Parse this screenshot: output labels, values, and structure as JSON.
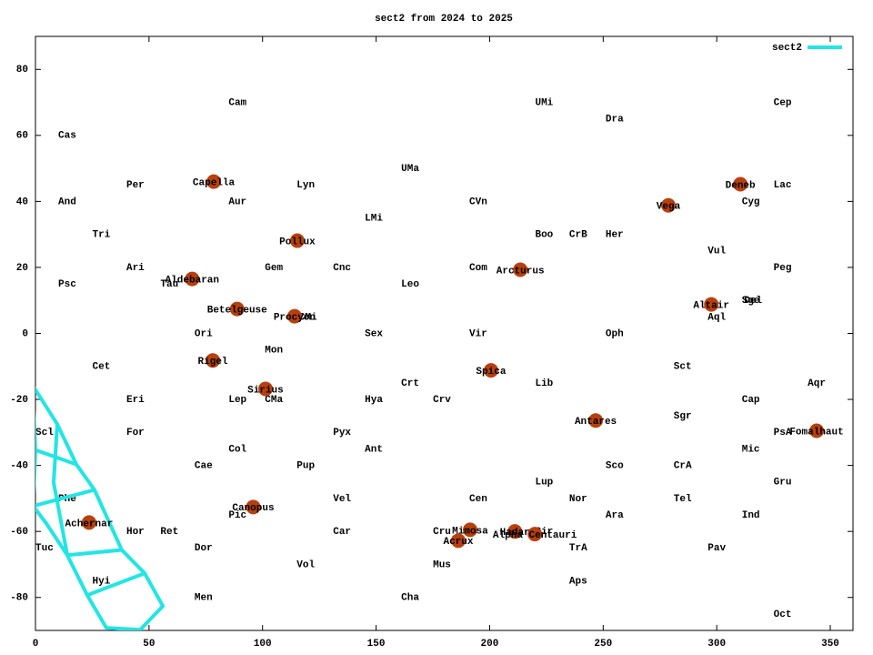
{
  "chart_data": {
    "type": "line",
    "title": "sect2 from 2024 to 2025",
    "xlim": [
      0,
      360
    ],
    "ylim": [
      -90,
      90
    ],
    "xticks": [
      0,
      50,
      100,
      150,
      200,
      250,
      300,
      350
    ],
    "yticks": [
      -80,
      -60,
      -40,
      -20,
      0,
      20,
      40,
      60,
      80
    ],
    "legend": "top-right",
    "series": [
      {
        "name": "sect2",
        "color": "#22e5e5",
        "x": [
          -1,
          9.6,
          18,
          26,
          38,
          48.1,
          56.1,
          46.1,
          31.2,
          22.8,
          14,
          4.8,
          -1,
          0,
          -1,
          -1,
          null,
          0,
          18,
          null,
          -1,
          26,
          null,
          14,
          38,
          null,
          22.8,
          48.1,
          null,
          9.6,
          8,
          14
        ],
        "values": [
          -16,
          -27.5,
          -39.7,
          -47.4,
          -65.6,
          -72.7,
          -82.6,
          -89.8,
          -89.2,
          -79.3,
          -67.2,
          -57.6,
          -52.3,
          -35.3,
          -19.8,
          -16,
          null,
          -35.3,
          -39.7,
          null,
          -52.3,
          -47.4,
          null,
          -67.2,
          -65.6,
          null,
          -79.3,
          -72.7,
          null,
          -27.5,
          -45.2,
          -67.2
        ]
      }
    ],
    "stars": {
      "color": "#b8400e",
      "names": [
        "Capella",
        "Pollux",
        "Aldebaran",
        "Betelgeuse",
        "Procyon",
        "Rigel",
        "Sirius",
        "Canopus",
        "Achernar",
        "Arcturus",
        "Spica",
        "Antares",
        "Vega",
        "Deneb",
        "Altair",
        "Fomalhaut",
        "Mimosa",
        "Acrux",
        "Hadar",
        "Alpha Centauri"
      ],
      "x": [
        78.5,
        115.3,
        69,
        88.8,
        114.1,
        78.1,
        101.3,
        95.9,
        23.6,
        213.5,
        200.6,
        246.7,
        278.7,
        310.4,
        297.6,
        344,
        191.4,
        186.2,
        211.1,
        219.9
      ],
      "values": [
        46,
        28.1,
        16.5,
        7.4,
        5.2,
        -8.2,
        -16.8,
        -52.6,
        -57.3,
        19.3,
        -11.2,
        -26.4,
        38.8,
        45.2,
        8.8,
        -29.5,
        -59.5,
        -62.8,
        -60,
        -60.8
      ]
    },
    "constellations": {
      "names": [
        "Cas",
        "Cam",
        "UMi",
        "Dra",
        "Cep",
        "Per",
        "Lyn",
        "UMa",
        "Lac",
        "And",
        "Aur",
        "CVn",
        "Cyg",
        "LMi",
        "Tri",
        "Boo",
        "CrB",
        "Her",
        "Vul",
        "Ari",
        "Gem",
        "Cnc",
        "Com",
        "Peg",
        "Psc",
        "Tau",
        "Leo",
        "Sge",
        "Del",
        "Aql",
        "CMi",
        "Ori",
        "Sex",
        "Vir",
        "Oph",
        "Mon",
        "Cet",
        "Sct",
        "Crt",
        "Lib",
        "Aqr",
        "Eri",
        "Lep",
        "CMa",
        "Hya",
        "Crv",
        "Cap",
        "Sgr",
        "Scl",
        "For",
        "Pyx",
        "PsA",
        "Col",
        "Ant",
        "Mic",
        "Cae",
        "Pup",
        "Sco",
        "CrA",
        "Lup",
        "Gru",
        "Phe",
        "Vel",
        "Cen",
        "Nor",
        "Tel",
        "Pic",
        "Ara",
        "Ind",
        "Hor",
        "Ret",
        "Car",
        "Cru",
        "Cir",
        "Tuc",
        "Dor",
        "TrA",
        "Pav",
        "Mus",
        "Vol",
        "Aps",
        "Hyi",
        "Men",
        "Cha",
        "Oct"
      ],
      "x": [
        14,
        89,
        224,
        255,
        329,
        44,
        119,
        165,
        329,
        14,
        89,
        195,
        315,
        149,
        29,
        224,
        239,
        255,
        300,
        44,
        105,
        135,
        195,
        329,
        14,
        59,
        165,
        315,
        316,
        300,
        120,
        74,
        149,
        195,
        255,
        105,
        29,
        285,
        165,
        224,
        344,
        44,
        89,
        105,
        149,
        179,
        315,
        285,
        0,
        44,
        135,
        329,
        89,
        149,
        315,
        74,
        119,
        255,
        285,
        224,
        329,
        14,
        135,
        195,
        239,
        285,
        89,
        255,
        315,
        44,
        59,
        135,
        179,
        224,
        0,
        74,
        239,
        300,
        179,
        119,
        239,
        29,
        74,
        165,
        329
      ],
      "values": [
        60,
        70,
        70,
        65,
        70,
        45,
        45,
        50,
        45,
        40,
        40,
        40,
        40,
        35,
        30,
        30,
        30,
        30,
        25,
        20,
        20,
        20,
        20,
        20,
        15,
        15,
        15,
        10,
        10,
        5,
        5,
        0,
        0,
        0,
        0,
        -5,
        -10,
        -10,
        -15,
        -15,
        -15,
        -20,
        -20,
        -20,
        -20,
        -20,
        -20,
        -25,
        -30,
        -30,
        -30,
        -30,
        -35,
        -35,
        -35,
        -40,
        -40,
        -40,
        -40,
        -45,
        -45,
        -50,
        -50,
        -50,
        -50,
        -50,
        -55,
        -55,
        -55,
        -60,
        -60,
        -60,
        -60,
        -60,
        -65,
        -65,
        -65,
        -65,
        -70,
        -70,
        -75,
        -75,
        -80,
        -80,
        -85
      ]
    }
  }
}
